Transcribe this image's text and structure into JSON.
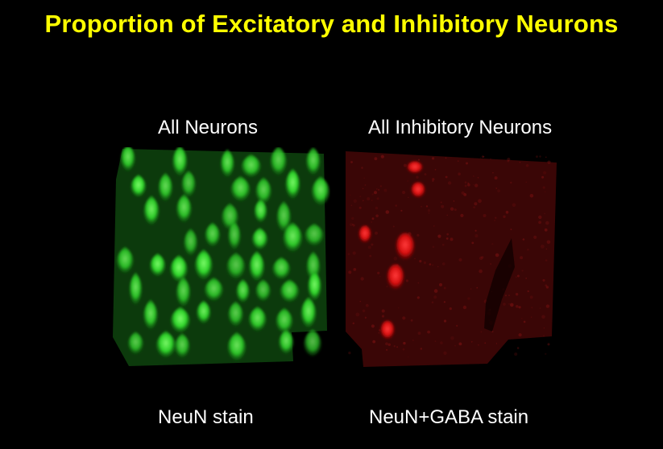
{
  "title": "Proportion of Excitatory and Inhibitory Neurons",
  "panels": [
    {
      "heading": "All Neurons",
      "caption": "NeuN stain",
      "color": "#22ee22"
    },
    {
      "heading": "All Inhibitory Neurons",
      "caption": "NeuN+GABA stain",
      "color": "#dd1111"
    }
  ]
}
